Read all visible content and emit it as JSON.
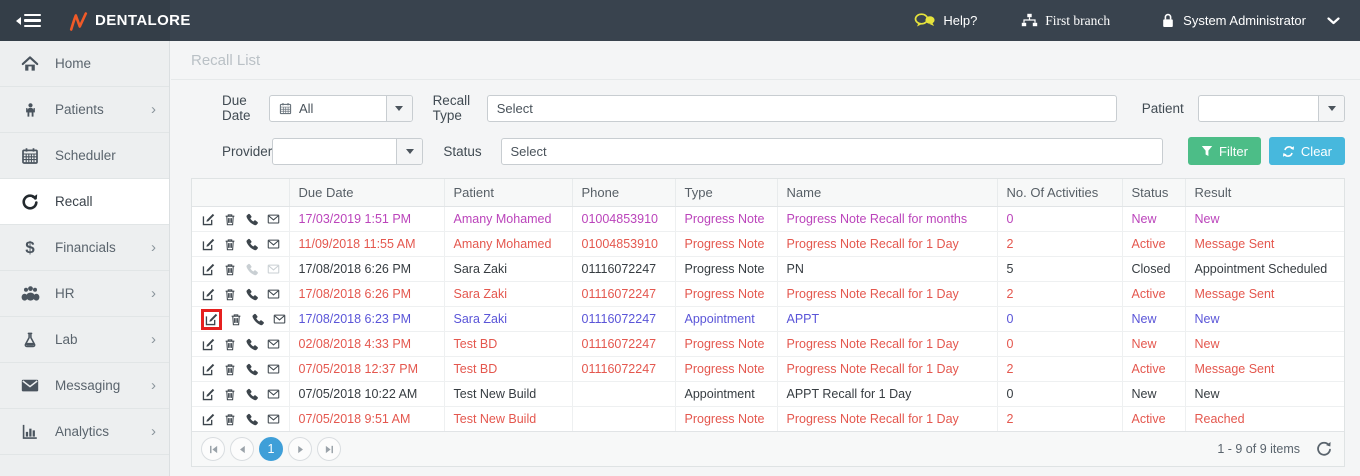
{
  "topbar": {
    "brand": "DENTALORE",
    "help_label": "Help?",
    "branch_label": "First branch",
    "user_label": "System Administrator"
  },
  "sidebar": {
    "items": [
      {
        "label": "Home",
        "icon": "home-icon",
        "has_submenu": false,
        "active": false
      },
      {
        "label": "Patients",
        "icon": "patients-icon",
        "has_submenu": true,
        "active": false
      },
      {
        "label": "Scheduler",
        "icon": "calendar-icon",
        "has_submenu": false,
        "active": false
      },
      {
        "label": "Recall",
        "icon": "recall-icon",
        "has_submenu": false,
        "active": true
      },
      {
        "label": "Financials",
        "icon": "dollar-icon",
        "has_submenu": true,
        "active": false
      },
      {
        "label": "HR",
        "icon": "people-icon",
        "has_submenu": true,
        "active": false
      },
      {
        "label": "Lab",
        "icon": "flask-icon",
        "has_submenu": true,
        "active": false
      },
      {
        "label": "Messaging",
        "icon": "envelope-icon",
        "has_submenu": true,
        "active": false
      },
      {
        "label": "Analytics",
        "icon": "chart-icon",
        "has_submenu": true,
        "active": false
      }
    ]
  },
  "page": {
    "title": "Recall List"
  },
  "filters": {
    "due_date": {
      "label": "Due Date",
      "value": "All"
    },
    "recall_type": {
      "label": "Recall Type",
      "value": "Select"
    },
    "patient": {
      "label": "Patient",
      "value": ""
    },
    "provider": {
      "label": "Provider",
      "value": ""
    },
    "status": {
      "label": "Status",
      "value": "Select"
    },
    "filter_button": "Filter",
    "clear_button": "Clear"
  },
  "table": {
    "columns": [
      "Due Date",
      "Patient",
      "Phone",
      "Type",
      "Name",
      "No. Of Activities",
      "Status",
      "Result"
    ],
    "row_actions": [
      "edit",
      "delete",
      "call",
      "email"
    ],
    "rows": [
      {
        "due_date": "17/03/2019 1:51 PM",
        "patient": "Amany Mohamed",
        "phone": "01004853910",
        "type": "Progress Note",
        "name": "Progress Note Recall for months",
        "activities": "0",
        "status": "New",
        "result": "New",
        "color": "magenta",
        "muted_icons": false,
        "highlight_edit": false
      },
      {
        "due_date": "11/09/2018 11:55 AM",
        "patient": "Amany Mohamed",
        "phone": "01004853910",
        "type": "Progress Note",
        "name": "Progress Note Recall for 1 Day",
        "activities": "2",
        "status": "Active",
        "result": "Message Sent",
        "color": "red",
        "muted_icons": false,
        "highlight_edit": false
      },
      {
        "due_date": "17/08/2018 6:26 PM",
        "patient": "Sara Zaki",
        "phone": "01116072247",
        "type": "Progress Note",
        "name": "PN",
        "activities": "5",
        "status": "Closed",
        "result": "Appointment Scheduled",
        "color": "black",
        "muted_icons": true,
        "highlight_edit": false
      },
      {
        "due_date": "17/08/2018 6:26 PM",
        "patient": "Sara Zaki",
        "phone": "01116072247",
        "type": "Progress Note",
        "name": "Progress Note Recall for 1 Day",
        "activities": "2",
        "status": "Active",
        "result": "Message Sent",
        "color": "red",
        "muted_icons": false,
        "highlight_edit": false
      },
      {
        "due_date": "17/08/2018 6:23 PM",
        "patient": "Sara Zaki",
        "phone": "01116072247",
        "type": "Appointment",
        "name": "APPT",
        "activities": "0",
        "status": "New",
        "result": "New",
        "color": "blue",
        "muted_icons": false,
        "highlight_edit": true
      },
      {
        "due_date": "02/08/2018 4:33 PM",
        "patient": "Test BD",
        "phone": "01116072247",
        "type": "Progress Note",
        "name": "Progress Note Recall for 1 Day",
        "activities": "0",
        "status": "New",
        "result": "New",
        "color": "red",
        "muted_icons": false,
        "highlight_edit": false
      },
      {
        "due_date": "07/05/2018 12:37 PM",
        "patient": "Test BD",
        "phone": "01116072247",
        "type": "Progress Note",
        "name": "Progress Note Recall for 1 Day",
        "activities": "2",
        "status": "Active",
        "result": "Message Sent",
        "color": "red",
        "muted_icons": false,
        "highlight_edit": false
      },
      {
        "due_date": "07/05/2018 10:22 AM",
        "patient": "Test New Build",
        "phone": "",
        "type": "Appointment",
        "name": "APPT Recall for 1 Day",
        "activities": "0",
        "status": "New",
        "result": "New",
        "color": "black",
        "muted_icons": false,
        "highlight_edit": false
      },
      {
        "due_date": "07/05/2018 9:51 AM",
        "patient": "Test New Build",
        "phone": "",
        "type": "Progress Note",
        "name": "Progress Note Recall for 1 Day",
        "activities": "2",
        "status": "Active",
        "result": "Reached",
        "color": "red",
        "muted_icons": false,
        "highlight_edit": false
      }
    ]
  },
  "pagination": {
    "current_page": "1",
    "summary": "1 - 9 of 9 items"
  },
  "colors": {
    "magenta": "#bb44bb",
    "red": "#e4574e",
    "blue": "#5a55d8",
    "black": "#363c41",
    "filter_green": "#4cbd87",
    "clear_blue": "#47b8dd",
    "page_blue": "#3f9fd8",
    "highlight_red": "#e6201f",
    "brand_orange": "#f05a28",
    "help_yellow": "#e6e33c"
  }
}
